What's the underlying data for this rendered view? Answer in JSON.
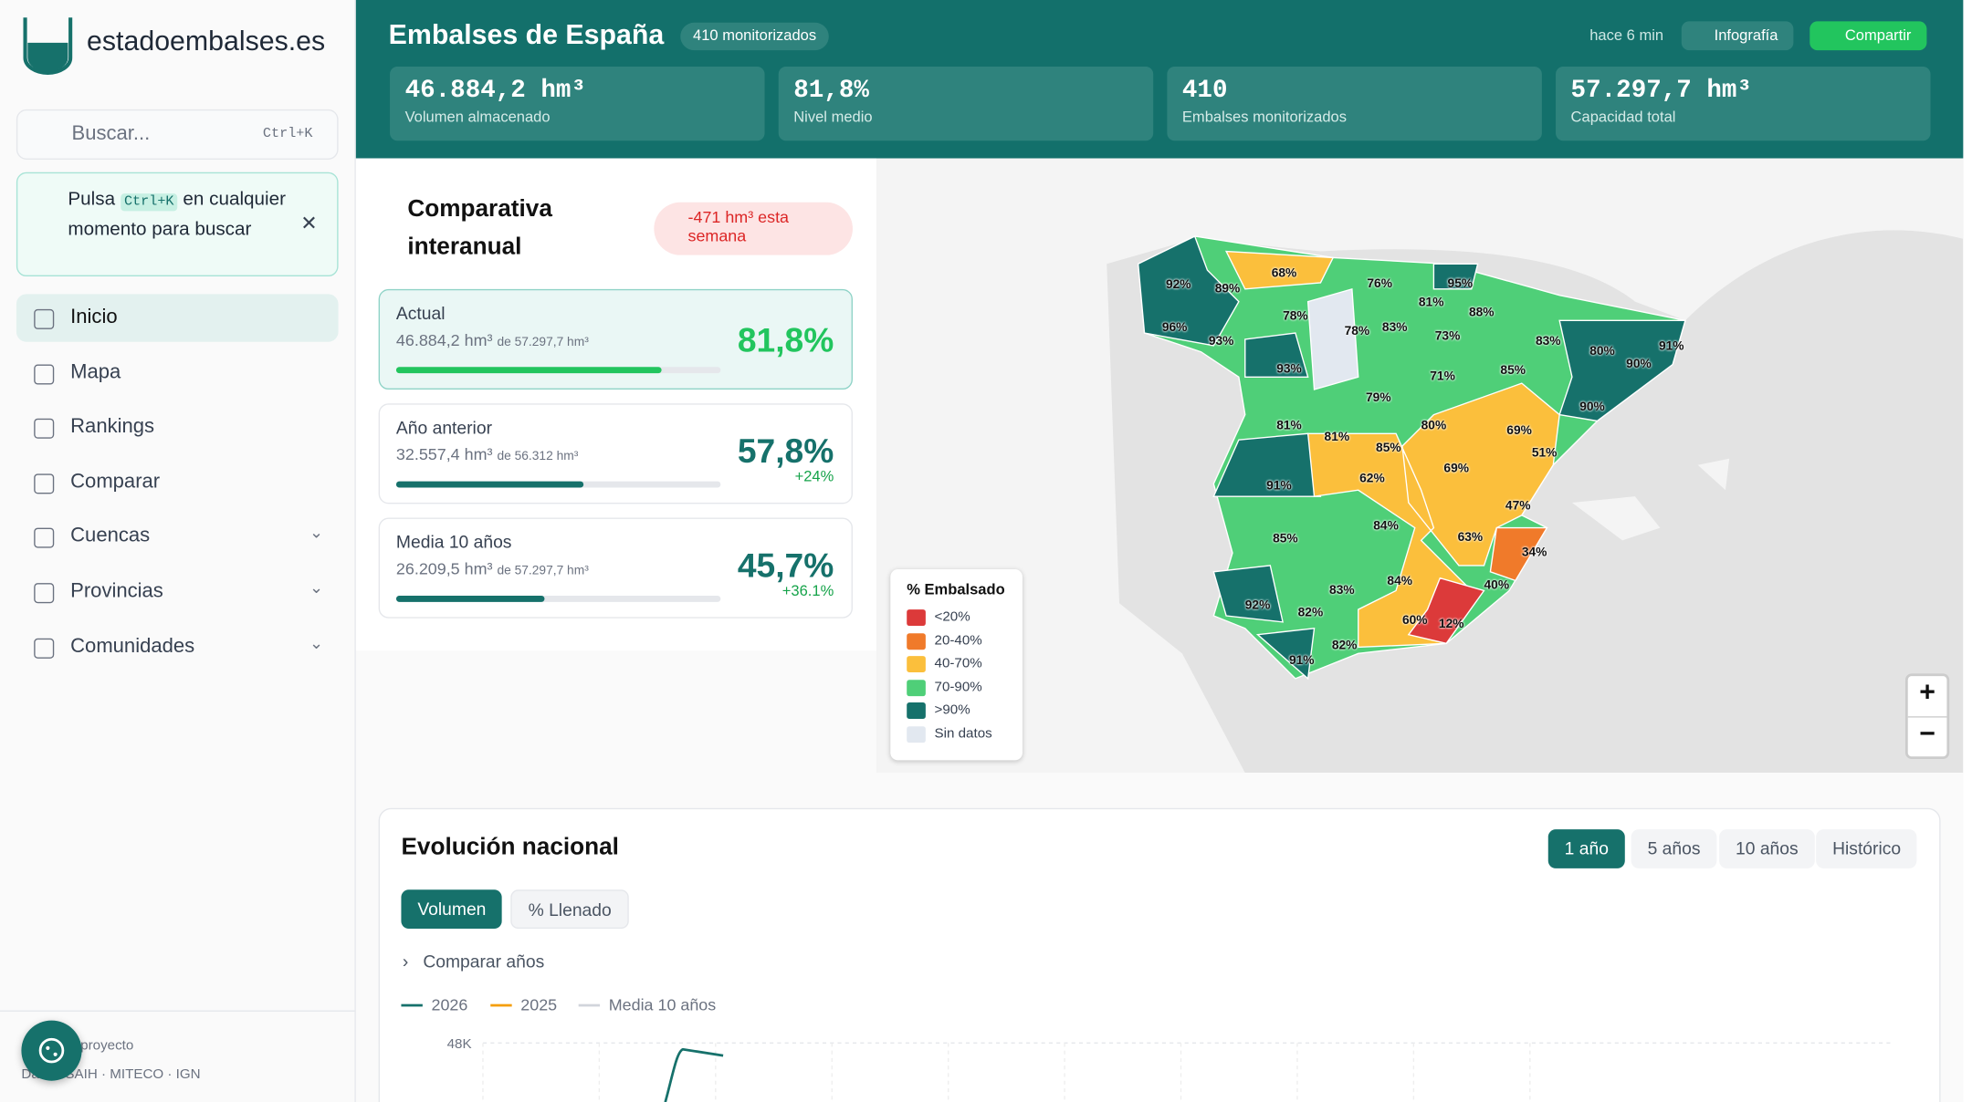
{
  "sidebar": {
    "logo": "estadoembalses.es",
    "search": "Buscar...",
    "shortcut": "Ctrl+K",
    "tip": {
      "pre": "Pulsa",
      "key": "Ctrl+K",
      "post": "en cualquier momento para buscar"
    },
    "nav": [
      "Inicio",
      "Mapa",
      "Rankings",
      "Comparar",
      "Cuencas",
      "Provincias",
      "Comunidades"
    ],
    "footer": {
      "project": "proyecto",
      "sources": "Datos: SAIH · MITECO · IGN"
    }
  },
  "header": {
    "title": "Embalses de España",
    "badge": "410 monitorizados",
    "updated": "hace 6 min",
    "infographic": "Infografía",
    "share": "Compartir",
    "stats": [
      {
        "value": "46.884,2 hm³",
        "label": "Volumen almacenado"
      },
      {
        "value": "81,8%",
        "label": "Nivel medio"
      },
      {
        "value": "410",
        "label": "Embalses monitorizados"
      },
      {
        "value": "57.297,7 hm³",
        "label": "Capacidad total"
      }
    ]
  },
  "comparison": {
    "title": "Comparativa interanual",
    "delta": "-471 hm³ esta semana",
    "cards": [
      {
        "name": "Actual",
        "amount": "46.884,2 hm³",
        "of": "de 57.297,7 hm³",
        "pct": "81,8%",
        "progress": 81.8
      },
      {
        "name": "Año anterior",
        "amount": "32.557,4 hm³",
        "of": "de 56.312 hm³",
        "pct": "57,8%",
        "change": "+24%",
        "progress": 57.8
      },
      {
        "name": "Media 10 años",
        "amount": "26.209,5 hm³",
        "of": "de 57.297,7 hm³",
        "pct": "45,7%",
        "change": "+36.1%",
        "progress": 45.7
      }
    ]
  },
  "map": {
    "legend_title": "% Embalsado",
    "legend": [
      {
        "label": "<20%",
        "color": "#dc3a3a"
      },
      {
        "label": "20-40%",
        "color": "#f07a2a"
      },
      {
        "label": "40-70%",
        "color": "#fbbf3c"
      },
      {
        "label": "70-90%",
        "color": "#4fcf78"
      },
      {
        "label": ">90%",
        "color": "#16716b"
      },
      {
        "label": "Sin datos",
        "color": "#e2e8f0"
      }
    ],
    "zoom_in": "+",
    "zoom_out": "−",
    "labels": [
      "92%",
      "89%",
      "68%",
      "76%",
      "95%",
      "81%",
      "88%",
      "78%",
      "78%",
      "83%",
      "73%",
      "83%",
      "80%",
      "91%",
      "96%",
      "93%",
      "90%",
      "93%",
      "85%",
      "71%",
      "90%",
      "79%",
      "81%",
      "81%",
      "80%",
      "69%",
      "85%",
      "51%",
      "62%",
      "69%",
      "91%",
      "47%",
      "84%",
      "85%",
      "63%",
      "34%",
      "84%",
      "83%",
      "40%",
      "92%",
      "82%",
      "60%",
      "12%",
      "82%",
      "91%"
    ]
  },
  "evolution": {
    "title": "Evolución nacional",
    "ranges": [
      "1 año",
      "5 años",
      "10 años",
      "Histórico"
    ],
    "modes": [
      "Volumen",
      "% Llenado"
    ],
    "compare": "Comparar años",
    "chart": {
      "type": "line",
      "series": [
        {
          "name": "2026",
          "color": "#16716b"
        },
        {
          "name": "2025",
          "color": "#f59e0b"
        },
        {
          "name": "Media 10 años",
          "color": "#d1d5db"
        }
      ],
      "yticks": [
        {
          "value": 48000,
          "label": "48K"
        }
      ]
    }
  }
}
